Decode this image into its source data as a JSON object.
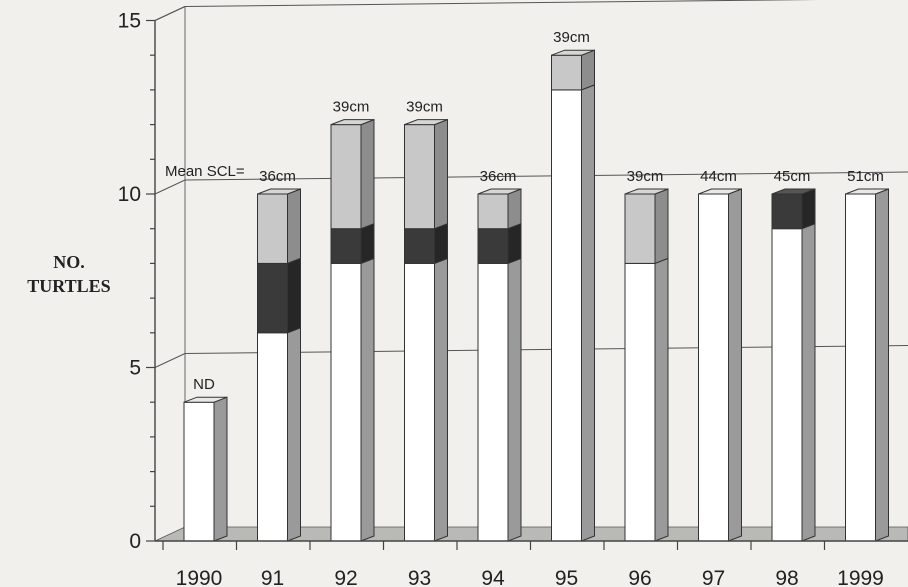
{
  "chart_data": {
    "type": "bar",
    "stacked": true,
    "style": "3d",
    "categories": [
      "1990",
      "91",
      "92",
      "93",
      "94",
      "95",
      "96",
      "97",
      "98",
      "1999"
    ],
    "series": [
      {
        "values": [
          4,
          6,
          8,
          8,
          8,
          13,
          8,
          10,
          9,
          10
        ],
        "color": "#ffffff"
      },
      {
        "values": [
          0,
          2,
          1,
          1,
          1,
          0,
          0,
          0,
          1,
          0
        ],
        "color": "#3a3a3a"
      },
      {
        "values": [
          0,
          2,
          3,
          3,
          1,
          1,
          2,
          0,
          0,
          0
        ],
        "color": "#c8c8c8"
      }
    ],
    "bar_labels": [
      "ND",
      "36cm",
      "39cm",
      "39cm",
      "36cm",
      "39cm",
      "39cm",
      "44cm",
      "45cm",
      "51cm"
    ],
    "annotation": "Mean SCL=",
    "ylabel_line1": "NO.",
    "ylabel_line2": "TURTLES",
    "yticks": [
      "0",
      "5",
      "10",
      "15"
    ],
    "ylim": [
      0,
      15
    ],
    "grid": true
  }
}
